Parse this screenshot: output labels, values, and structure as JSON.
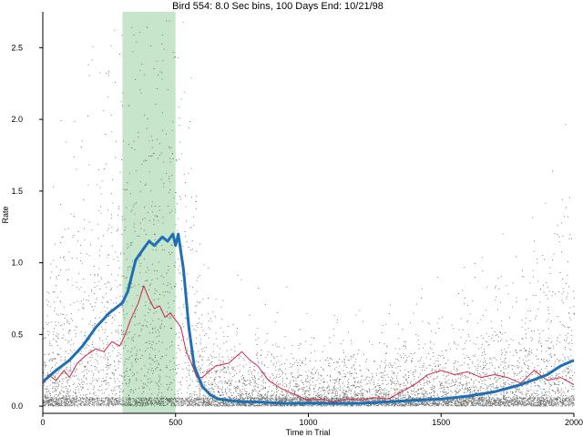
{
  "chart_data": {
    "type": "scatter",
    "title": "Bird 554: 8.0 Sec bins, 100 Days End: 10/21/98",
    "xlabel": "Time in Trial",
    "ylabel": "Rate",
    "xlim": [
      0,
      2000
    ],
    "ylim": [
      -0.05,
      2.75
    ],
    "x_ticks": [
      0,
      500,
      1000,
      1500,
      2000
    ],
    "x_tick_labels": [
      "0",
      "500",
      "1000",
      "1500",
      "2000"
    ],
    "y_ticks": [
      0.0,
      0.5,
      1.0,
      1.5,
      2.0,
      2.5
    ],
    "y_tick_labels": [
      "0.0",
      "0.5",
      "1.0",
      "1.5",
      "2.0",
      "2.5"
    ],
    "shaded_region": {
      "x": [
        300,
        500
      ],
      "color": "#b4dcb9"
    },
    "grid": false,
    "legend": "none",
    "series": [
      {
        "kind": "line",
        "color": "#1f6fb5",
        "x": [
          0,
          50,
          100,
          150,
          200,
          250,
          300,
          320,
          350,
          380,
          400,
          420,
          450,
          470,
          490,
          500,
          510,
          530,
          550,
          570,
          600,
          630,
          660,
          700,
          750,
          800,
          900,
          1000,
          1100,
          1200,
          1300,
          1400,
          1500,
          1600,
          1700,
          1800,
          1900,
          1950,
          2000
        ],
        "y": [
          0.17,
          0.25,
          0.32,
          0.42,
          0.55,
          0.65,
          0.72,
          0.8,
          1.02,
          1.1,
          1.15,
          1.12,
          1.18,
          1.15,
          1.2,
          1.12,
          1.2,
          0.95,
          0.55,
          0.28,
          0.14,
          0.08,
          0.05,
          0.04,
          0.03,
          0.03,
          0.02,
          0.02,
          0.02,
          0.02,
          0.03,
          0.04,
          0.05,
          0.07,
          0.1,
          0.15,
          0.22,
          0.28,
          0.32
        ]
      },
      {
        "kind": "line",
        "color": "#d6264a",
        "x": [
          0,
          20,
          50,
          80,
          100,
          130,
          160,
          200,
          230,
          260,
          290,
          310,
          330,
          360,
          380,
          400,
          420,
          440,
          460,
          480,
          500,
          520,
          540,
          560,
          580,
          600,
          650,
          700,
          750,
          780,
          810,
          850,
          900,
          950,
          1000,
          1050,
          1100,
          1150,
          1200,
          1250,
          1300,
          1350,
          1400,
          1450,
          1500,
          1550,
          1600,
          1650,
          1700,
          1750,
          1800,
          1850,
          1900,
          1950,
          2000
        ],
        "y": [
          0.15,
          0.22,
          0.18,
          0.25,
          0.2,
          0.3,
          0.35,
          0.4,
          0.38,
          0.45,
          0.42,
          0.5,
          0.6,
          0.72,
          0.84,
          0.75,
          0.68,
          0.7,
          0.62,
          0.65,
          0.6,
          0.55,
          0.38,
          0.3,
          0.2,
          0.2,
          0.28,
          0.3,
          0.38,
          0.32,
          0.28,
          0.18,
          0.12,
          0.08,
          0.04,
          0.05,
          0.03,
          0.05,
          0.04,
          0.06,
          0.05,
          0.1,
          0.15,
          0.22,
          0.25,
          0.22,
          0.24,
          0.2,
          0.22,
          0.2,
          0.16,
          0.25,
          0.18,
          0.2,
          0.15
        ]
      }
    ]
  }
}
